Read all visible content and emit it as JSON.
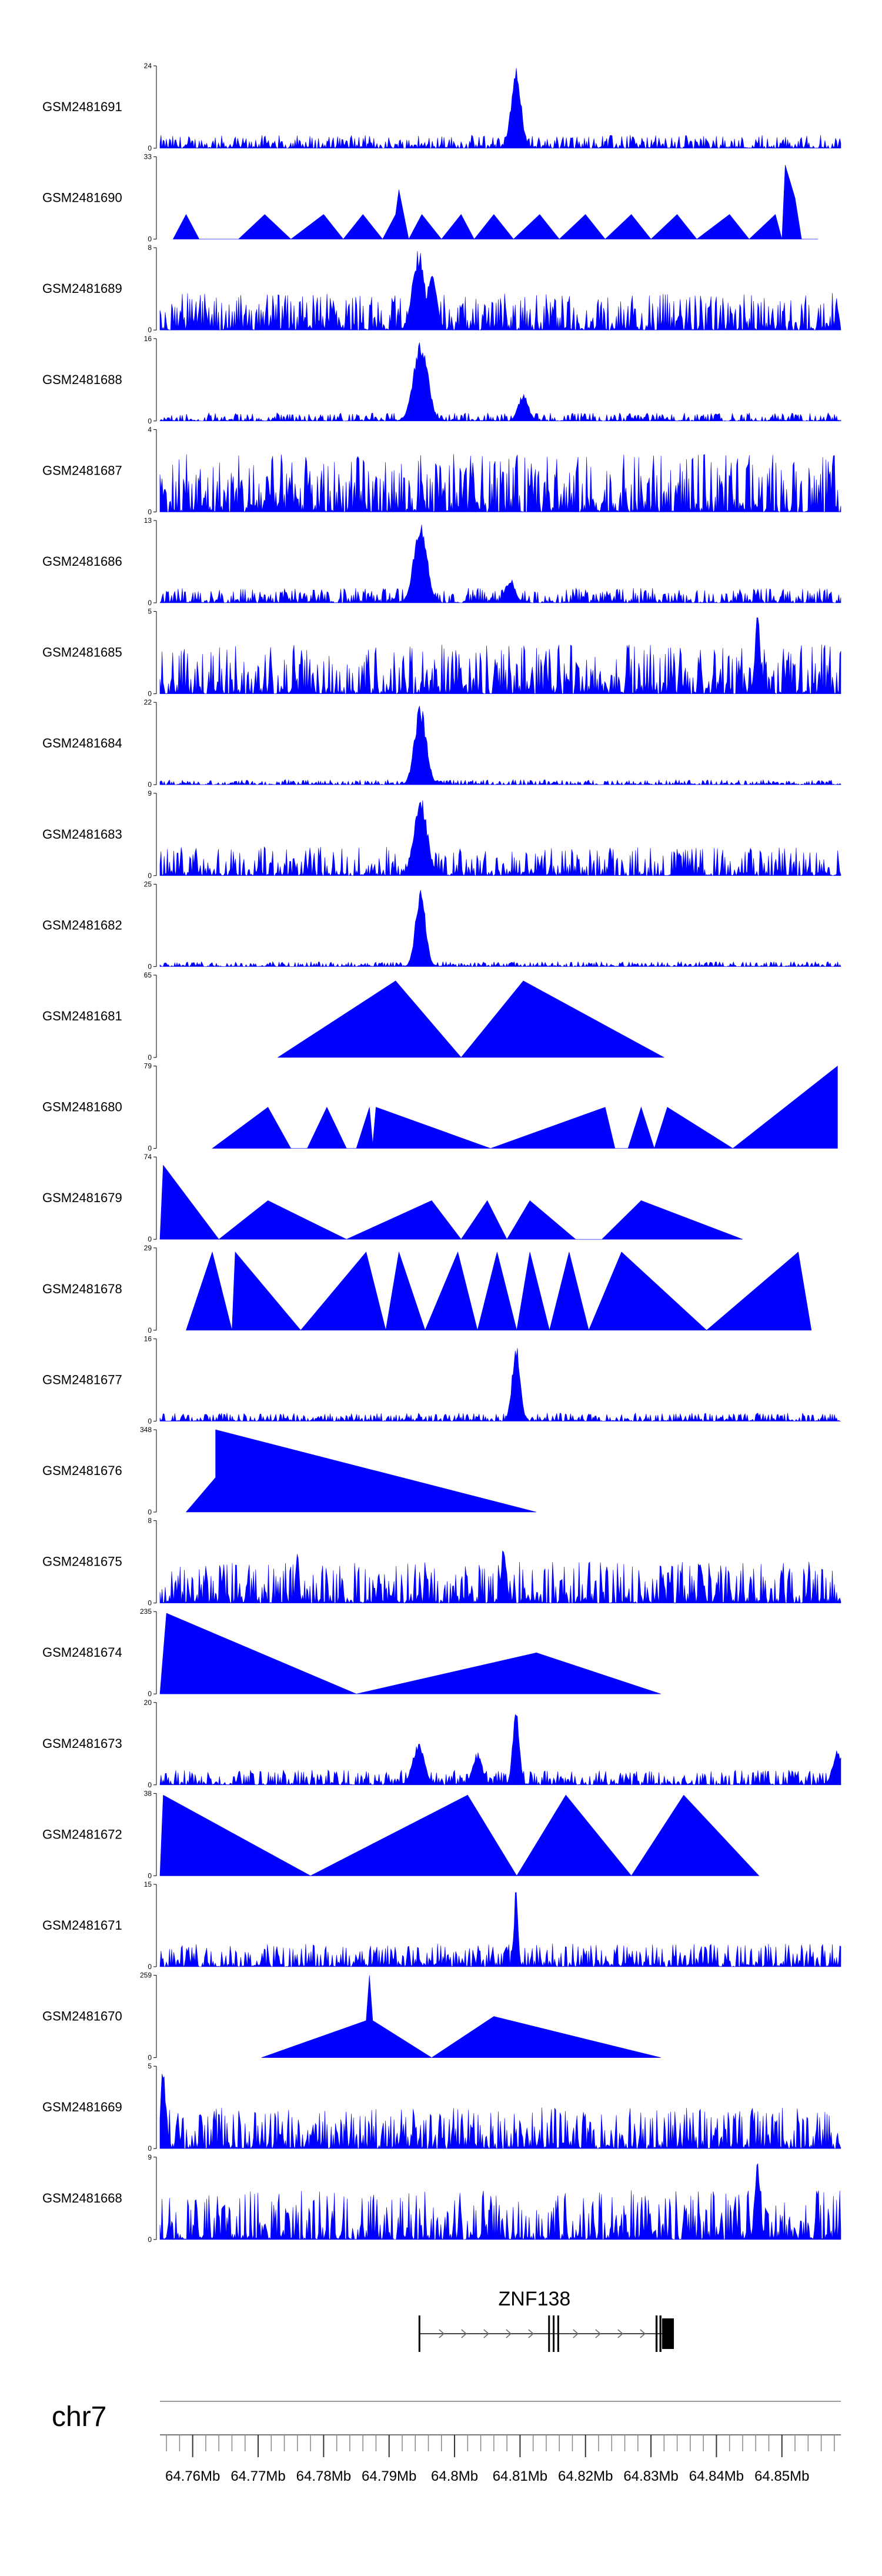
{
  "chart_data": {
    "type": "area",
    "title": "",
    "chromosome": "chr7",
    "xlabel": "",
    "ylabel": "",
    "x_range_mb": [
      64.755,
      64.859
    ],
    "fill_color": "#0000ff",
    "tracks": [
      {
        "name": "GSM2481691",
        "ymax": 24,
        "ymin_label": "0",
        "ymax_label": "24",
        "pattern": "dense-noise",
        "level": 0.16,
        "peaks": [
          [
            64.8094,
            1.0,
            0.0015
          ]
        ]
      },
      {
        "name": "GSM2481690",
        "ymax": 33,
        "ymin_label": "0",
        "ymax_label": "33",
        "pattern": "triangles",
        "segments": [
          [
            64.757,
            0.0
          ],
          [
            64.759,
            0.3
          ],
          [
            64.761,
            0.0
          ],
          [
            64.767,
            0.0
          ],
          [
            64.771,
            0.3
          ],
          [
            64.775,
            0.0
          ],
          [
            64.78,
            0.3
          ],
          [
            64.783,
            0.0
          ],
          [
            64.786,
            0.3
          ],
          [
            64.789,
            0.0
          ],
          [
            64.791,
            0.3
          ],
          [
            64.7915,
            0.6
          ],
          [
            64.793,
            0.0
          ],
          [
            64.795,
            0.3
          ],
          [
            64.798,
            0.0
          ],
          [
            64.801,
            0.3
          ],
          [
            64.803,
            0.0
          ],
          [
            64.806,
            0.3
          ],
          [
            64.809,
            0.0
          ],
          [
            64.813,
            0.3
          ],
          [
            64.816,
            0.0
          ],
          [
            64.82,
            0.3
          ],
          [
            64.823,
            0.0
          ],
          [
            64.827,
            0.3
          ],
          [
            64.83,
            0.0
          ],
          [
            64.834,
            0.3
          ],
          [
            64.837,
            0.0
          ],
          [
            64.842,
            0.3
          ],
          [
            64.845,
            0.0
          ],
          [
            64.849,
            0.3
          ],
          [
            64.85,
            0.0
          ],
          [
            64.8505,
            0.9
          ],
          [
            64.852,
            0.5
          ],
          [
            64.853,
            0.0
          ],
          [
            64.8555,
            0.0
          ]
        ]
      },
      {
        "name": "GSM2481689",
        "ymax": 8,
        "ymin_label": "0",
        "ymax_label": "8",
        "pattern": "dense-noise",
        "level": 0.45,
        "peaks": [
          [
            64.7945,
            1.0,
            0.0018
          ],
          [
            64.7965,
            0.7,
            0.0015
          ]
        ]
      },
      {
        "name": "GSM2481688",
        "ymax": 16,
        "ymin_label": "0",
        "ymax_label": "16",
        "pattern": "dense-noise",
        "level": 0.1,
        "peaks": [
          [
            64.7948,
            1.0,
            0.0022
          ],
          [
            64.8105,
            0.35,
            0.0015
          ]
        ]
      },
      {
        "name": "GSM2481687",
        "ymax": 4,
        "ymin_label": "0",
        "ymax_label": "4",
        "pattern": "dense-noise",
        "level": 0.7,
        "peaks": []
      },
      {
        "name": "GSM2481686",
        "ymax": 13,
        "ymin_label": "0",
        "ymax_label": "13",
        "pattern": "dense-noise",
        "level": 0.18,
        "peaks": [
          [
            64.7948,
            1.0,
            0.002
          ],
          [
            64.8085,
            0.3,
            0.0015
          ]
        ]
      },
      {
        "name": "GSM2481685",
        "ymax": 5,
        "ymin_label": "0",
        "ymax_label": "5",
        "pattern": "dense-noise",
        "level": 0.6,
        "peaks": [
          [
            64.8463,
            1.0,
            0.0008
          ]
        ]
      },
      {
        "name": "GSM2481684",
        "ymax": 22,
        "ymin_label": "0",
        "ymax_label": "22",
        "pattern": "dense-noise",
        "level": 0.06,
        "peaks": [
          [
            64.7948,
            1.0,
            0.0018
          ]
        ]
      },
      {
        "name": "GSM2481683",
        "ymax": 9,
        "ymin_label": "0",
        "ymax_label": "9",
        "pattern": "dense-noise",
        "level": 0.35,
        "peaks": [
          [
            64.7948,
            1.0,
            0.002
          ]
        ]
      },
      {
        "name": "GSM2481682",
        "ymax": 25,
        "ymin_label": "0",
        "ymax_label": "25",
        "pattern": "dense-noise",
        "level": 0.06,
        "peaks": [
          [
            64.7948,
            1.0,
            0.0015
          ]
        ]
      },
      {
        "name": "GSM2481681",
        "ymax": 65,
        "ymin_label": "0",
        "ymax_label": "65",
        "pattern": "triangles",
        "segments": [
          [
            64.773,
            0.0
          ],
          [
            64.791,
            0.93
          ],
          [
            64.801,
            0.0
          ],
          [
            64.8105,
            0.93
          ],
          [
            64.832,
            0.0
          ]
        ]
      },
      {
        "name": "GSM2481680",
        "ymax": 79,
        "ymin_label": "0",
        "ymax_label": "79",
        "pattern": "triangles",
        "segments": [
          [
            64.763,
            0.0
          ],
          [
            64.7715,
            0.5
          ],
          [
            64.775,
            0.0
          ],
          [
            64.7775,
            0.0
          ],
          [
            64.7805,
            0.5
          ],
          [
            64.7835,
            0.0
          ],
          [
            64.785,
            0.0
          ],
          [
            64.787,
            0.5
          ],
          [
            64.7875,
            0.05
          ],
          [
            64.788,
            0.5
          ],
          [
            64.8055,
            0.0
          ],
          [
            64.823,
            0.5
          ],
          [
            64.8245,
            0.0
          ],
          [
            64.8265,
            0.0
          ],
          [
            64.8285,
            0.5
          ],
          [
            64.8305,
            0.0
          ],
          [
            64.8325,
            0.5
          ],
          [
            64.8425,
            0.0
          ],
          [
            64.8505,
            0.5
          ],
          [
            64.8585,
            1.0
          ],
          [
            64.8585,
            0.0
          ]
        ]
      },
      {
        "name": "GSM2481679",
        "ymax": 74,
        "ymin_label": "0",
        "ymax_label": "74",
        "pattern": "triangles",
        "segments": [
          [
            64.755,
            0.0
          ],
          [
            64.7555,
            0.9
          ],
          [
            64.764,
            0.0
          ],
          [
            64.7715,
            0.47
          ],
          [
            64.7835,
            0.0
          ],
          [
            64.7965,
            0.47
          ],
          [
            64.801,
            0.0
          ],
          [
            64.805,
            0.47
          ],
          [
            64.808,
            0.0
          ],
          [
            64.8115,
            0.47
          ],
          [
            64.8185,
            0.0
          ],
          [
            64.8225,
            0.0
          ],
          [
            64.8285,
            0.47
          ],
          [
            64.844,
            0.0
          ]
        ]
      },
      {
        "name": "GSM2481678",
        "ymax": 29,
        "ymin_label": "0",
        "ymax_label": "29",
        "pattern": "triangles",
        "segments": [
          [
            64.759,
            0.0
          ],
          [
            64.763,
            0.95
          ],
          [
            64.766,
            0.0
          ],
          [
            64.7665,
            0.95
          ],
          [
            64.7765,
            0.0
          ],
          [
            64.7865,
            0.95
          ],
          [
            64.7895,
            0.0
          ],
          [
            64.7915,
            0.95
          ],
          [
            64.7955,
            0.0
          ],
          [
            64.8005,
            0.95
          ],
          [
            64.8035,
            0.0
          ],
          [
            64.8065,
            0.95
          ],
          [
            64.8095,
            0.0
          ],
          [
            64.8115,
            0.95
          ],
          [
            64.8145,
            0.0
          ],
          [
            64.8175,
            0.95
          ],
          [
            64.8205,
            0.0
          ],
          [
            64.8255,
            0.95
          ],
          [
            64.8385,
            0.0
          ],
          [
            64.8525,
            0.95
          ],
          [
            64.8545,
            0.0
          ]
        ]
      },
      {
        "name": "GSM2481677",
        "ymax": 16,
        "ymin_label": "0",
        "ymax_label": "16",
        "pattern": "dense-noise",
        "level": 0.1,
        "peaks": [
          [
            64.8094,
            1.0,
            0.0012
          ]
        ]
      },
      {
        "name": "GSM2481676",
        "ymax": 348,
        "ymin_label": "0",
        "ymax_label": "348",
        "pattern": "triangles",
        "segments": [
          [
            64.759,
            0.0
          ],
          [
            64.7635,
            0.42
          ],
          [
            64.7635,
            1.0
          ],
          [
            64.8125,
            0.0
          ]
        ]
      },
      {
        "name": "GSM2481675",
        "ymax": 8,
        "ymin_label": "0",
        "ymax_label": "8",
        "pattern": "dense-noise",
        "level": 0.5,
        "peaks": [
          [
            64.776,
            0.7,
            0.0005
          ],
          [
            64.8075,
            0.7,
            0.0008
          ]
        ]
      },
      {
        "name": "GSM2481674",
        "ymax": 235,
        "ymin_label": "0",
        "ymax_label": "235",
        "pattern": "triangles",
        "segments": [
          [
            64.755,
            0.0
          ],
          [
            64.756,
            0.98
          ],
          [
            64.785,
            0.0
          ],
          [
            64.8125,
            0.5
          ],
          [
            64.8315,
            0.0
          ]
        ]
      },
      {
        "name": "GSM2481673",
        "ymax": 20,
        "ymin_label": "0",
        "ymax_label": "20",
        "pattern": "dense-noise",
        "level": 0.18,
        "peaks": [
          [
            64.7945,
            0.55,
            0.0018
          ],
          [
            64.8094,
            1.0,
            0.001
          ],
          [
            64.8035,
            0.4,
            0.0015
          ],
          [
            64.8585,
            0.45,
            0.0015
          ]
        ]
      },
      {
        "name": "GSM2481672",
        "ymax": 38,
        "ymin_label": "0",
        "ymax_label": "38",
        "pattern": "triangles",
        "segments": [
          [
            64.755,
            0.0
          ],
          [
            64.7555,
            0.98
          ],
          [
            64.778,
            0.0
          ],
          [
            64.802,
            0.98
          ],
          [
            64.8095,
            0.0
          ],
          [
            64.817,
            0.98
          ],
          [
            64.827,
            0.0
          ],
          [
            64.835,
            0.98
          ],
          [
            64.8465,
            0.0
          ]
        ]
      },
      {
        "name": "GSM2481671",
        "ymax": 15,
        "ymin_label": "0",
        "ymax_label": "15",
        "pattern": "dense-noise",
        "level": 0.28,
        "peaks": [
          [
            64.8094,
            1.0,
            0.0006
          ]
        ]
      },
      {
        "name": "GSM2481670",
        "ymax": 259,
        "ymin_label": "0",
        "ymax_label": "259",
        "pattern": "triangles",
        "segments": [
          [
            64.7705,
            0.0
          ],
          [
            64.7865,
            0.45
          ],
          [
            64.787,
            1.0
          ],
          [
            64.7875,
            0.45
          ],
          [
            64.7965,
            0.0
          ],
          [
            64.806,
            0.5
          ],
          [
            64.8315,
            0.0
          ]
        ]
      },
      {
        "name": "GSM2481669",
        "ymax": 5,
        "ymin_label": "0",
        "ymax_label": "5",
        "pattern": "dense-noise",
        "level": 0.5,
        "peaks": [
          [
            64.7555,
            1.0,
            0.0008
          ]
        ]
      },
      {
        "name": "GSM2481668",
        "ymax": 9,
        "ymin_label": "0",
        "ymax_label": "9",
        "pattern": "dense-noise",
        "level": 0.6,
        "peaks": [
          [
            64.8463,
            1.0,
            0.0008
          ]
        ]
      }
    ],
    "gene": {
      "name": "ZNF138",
      "start_mb": 64.7945,
      "end_mb": 64.8335,
      "strand": "+",
      "exons_mb": [
        [
          64.7945,
          64.7947
        ],
        [
          64.8143,
          64.8145
        ],
        [
          64.815,
          64.8152
        ],
        [
          64.8157,
          64.8159
        ],
        [
          64.8307,
          64.831
        ],
        [
          64.8313,
          64.8316
        ],
        [
          64.8317,
          64.8335
        ]
      ]
    },
    "axis": {
      "tick_labels": [
        "64.76Mb",
        "64.77Mb",
        "64.78Mb",
        "64.79Mb",
        "64.8Mb",
        "64.81Mb",
        "64.82Mb",
        "64.83Mb",
        "64.84Mb",
        "64.85Mb"
      ],
      "tick_values_mb": [
        64.76,
        64.77,
        64.78,
        64.79,
        64.8,
        64.81,
        64.82,
        64.83,
        64.84,
        64.85
      ],
      "minor_step_mb": 0.002
    }
  }
}
